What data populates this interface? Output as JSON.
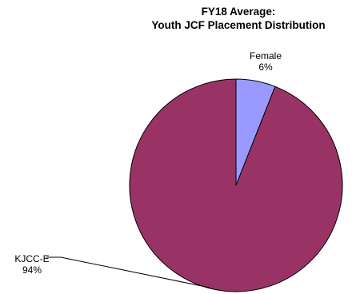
{
  "chart_data": {
    "type": "pie",
    "title_lines": [
      "FY18 Average:",
      "Youth JCF Placement Distribution"
    ],
    "slices": [
      {
        "name": "Female",
        "value": 6,
        "label_value": "6%",
        "color": "#9999ff"
      },
      {
        "name": "KJCC-E",
        "value": 94,
        "label_value": "94%",
        "color": "#993366"
      }
    ],
    "start_angle_deg": 0,
    "direction": "clockwise",
    "legend": "none"
  }
}
